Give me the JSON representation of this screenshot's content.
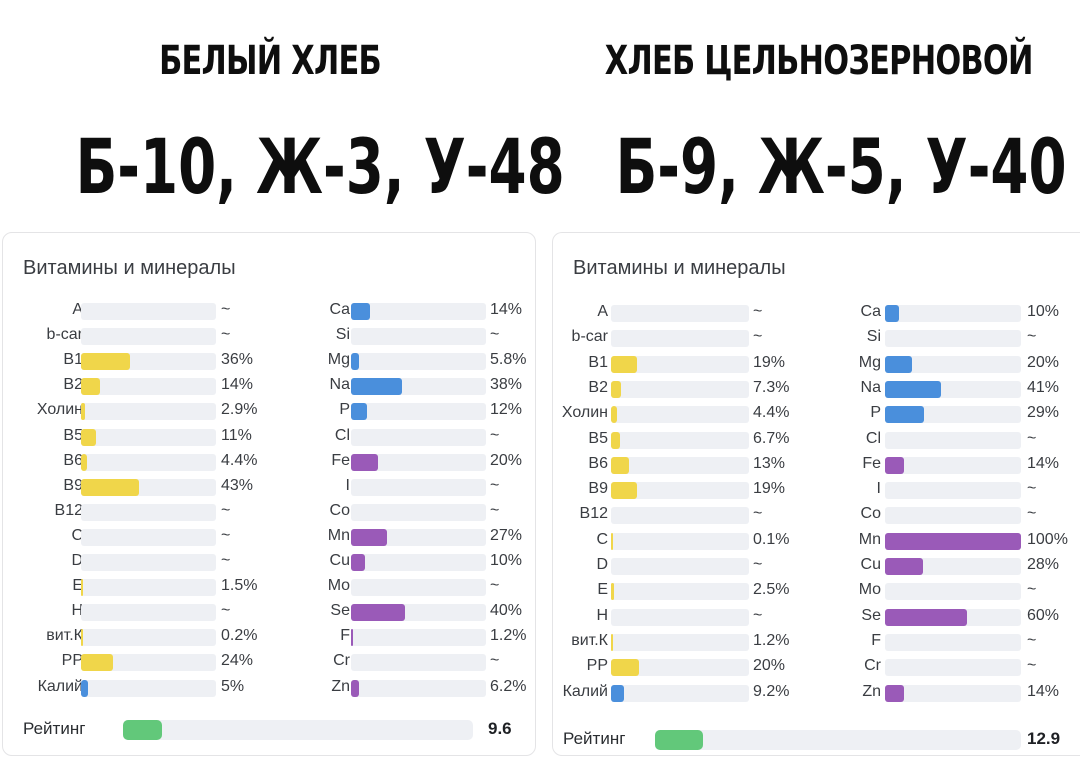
{
  "colors": {
    "yellow": "#f0d64a",
    "blue": "#4a8fdc",
    "purple": "#9a5ab8",
    "green": "#62c87a"
  },
  "panels": [
    {
      "title": "БЕЛЫЙ ХЛЕБ",
      "macros": "Б-10, Ж-3, У-48",
      "card_title": "Витамины и минералы",
      "rating_label": "Рейтинг",
      "rating_value": "9.6",
      "rating_fraction": 0.11,
      "left": [
        {
          "label": "A",
          "value": "~",
          "pct": 0,
          "color": "yellow"
        },
        {
          "label": "b-car",
          "value": "~",
          "pct": 0,
          "color": "yellow"
        },
        {
          "label": "B1",
          "value": "36%",
          "pct": 36,
          "color": "yellow"
        },
        {
          "label": "B2",
          "value": "14%",
          "pct": 14,
          "color": "yellow"
        },
        {
          "label": "Холин",
          "value": "2.9%",
          "pct": 2.9,
          "color": "yellow"
        },
        {
          "label": "B5",
          "value": "11%",
          "pct": 11,
          "color": "yellow"
        },
        {
          "label": "B6",
          "value": "4.4%",
          "pct": 4.4,
          "color": "yellow"
        },
        {
          "label": "B9",
          "value": "43%",
          "pct": 43,
          "color": "yellow"
        },
        {
          "label": "B12",
          "value": "~",
          "pct": 0,
          "color": "yellow"
        },
        {
          "label": "C",
          "value": "~",
          "pct": 0,
          "color": "yellow"
        },
        {
          "label": "D",
          "value": "~",
          "pct": 0,
          "color": "yellow"
        },
        {
          "label": "E",
          "value": "1.5%",
          "pct": 1.5,
          "color": "yellow"
        },
        {
          "label": "H",
          "value": "~",
          "pct": 0,
          "color": "yellow"
        },
        {
          "label": "вит.К",
          "value": "0.2%",
          "pct": 0.2,
          "color": "yellow"
        },
        {
          "label": "PP",
          "value": "24%",
          "pct": 24,
          "color": "yellow"
        },
        {
          "label": "Калий",
          "value": "5%",
          "pct": 5,
          "color": "blue"
        }
      ],
      "right": [
        {
          "label": "Ca",
          "value": "14%",
          "pct": 14,
          "color": "blue"
        },
        {
          "label": "Si",
          "value": "~",
          "pct": 0,
          "color": "blue"
        },
        {
          "label": "Mg",
          "value": "5.8%",
          "pct": 5.8,
          "color": "blue"
        },
        {
          "label": "Na",
          "value": "38%",
          "pct": 38,
          "color": "blue"
        },
        {
          "label": "P",
          "value": "12%",
          "pct": 12,
          "color": "blue"
        },
        {
          "label": "Cl",
          "value": "~",
          "pct": 0,
          "color": "blue"
        },
        {
          "label": "Fe",
          "value": "20%",
          "pct": 20,
          "color": "purple"
        },
        {
          "label": "I",
          "value": "~",
          "pct": 0,
          "color": "purple"
        },
        {
          "label": "Co",
          "value": "~",
          "pct": 0,
          "color": "purple"
        },
        {
          "label": "Mn",
          "value": "27%",
          "pct": 27,
          "color": "purple"
        },
        {
          "label": "Cu",
          "value": "10%",
          "pct": 10,
          "color": "purple"
        },
        {
          "label": "Mo",
          "value": "~",
          "pct": 0,
          "color": "purple"
        },
        {
          "label": "Se",
          "value": "40%",
          "pct": 40,
          "color": "purple"
        },
        {
          "label": "F",
          "value": "1.2%",
          "pct": 1.2,
          "color": "purple"
        },
        {
          "label": "Cr",
          "value": "~",
          "pct": 0,
          "color": "purple"
        },
        {
          "label": "Zn",
          "value": "6.2%",
          "pct": 6.2,
          "color": "purple"
        }
      ]
    },
    {
      "title": "ХЛЕБ ЦЕЛЬНОЗЕРНОВОЙ",
      "macros": "Б-9, Ж-5, У-40",
      "card_title": "Витамины и минералы",
      "rating_label": "Рейтинг",
      "rating_value": "12.9",
      "rating_fraction": 0.13,
      "left": [
        {
          "label": "A",
          "value": "~",
          "pct": 0,
          "color": "yellow"
        },
        {
          "label": "b-car",
          "value": "~",
          "pct": 0,
          "color": "yellow"
        },
        {
          "label": "B1",
          "value": "19%",
          "pct": 19,
          "color": "yellow"
        },
        {
          "label": "B2",
          "value": "7.3%",
          "pct": 7.3,
          "color": "yellow"
        },
        {
          "label": "Холин",
          "value": "4.4%",
          "pct": 4.4,
          "color": "yellow"
        },
        {
          "label": "B5",
          "value": "6.7%",
          "pct": 6.7,
          "color": "yellow"
        },
        {
          "label": "B6",
          "value": "13%",
          "pct": 13,
          "color": "yellow"
        },
        {
          "label": "B9",
          "value": "19%",
          "pct": 19,
          "color": "yellow"
        },
        {
          "label": "B12",
          "value": "~",
          "pct": 0,
          "color": "yellow"
        },
        {
          "label": "C",
          "value": "0.1%",
          "pct": 0.1,
          "color": "yellow"
        },
        {
          "label": "D",
          "value": "~",
          "pct": 0,
          "color": "yellow"
        },
        {
          "label": "E",
          "value": "2.5%",
          "pct": 2.5,
          "color": "yellow"
        },
        {
          "label": "H",
          "value": "~",
          "pct": 0,
          "color": "yellow"
        },
        {
          "label": "вит.К",
          "value": "1.2%",
          "pct": 1.2,
          "color": "yellow"
        },
        {
          "label": "PP",
          "value": "20%",
          "pct": 20,
          "color": "yellow"
        },
        {
          "label": "Калий",
          "value": "9.2%",
          "pct": 9.2,
          "color": "blue"
        }
      ],
      "right": [
        {
          "label": "Ca",
          "value": "10%",
          "pct": 10,
          "color": "blue"
        },
        {
          "label": "Si",
          "value": "~",
          "pct": 0,
          "color": "blue"
        },
        {
          "label": "Mg",
          "value": "20%",
          "pct": 20,
          "color": "blue"
        },
        {
          "label": "Na",
          "value": "41%",
          "pct": 41,
          "color": "blue"
        },
        {
          "label": "P",
          "value": "29%",
          "pct": 29,
          "color": "blue"
        },
        {
          "label": "Cl",
          "value": "~",
          "pct": 0,
          "color": "blue"
        },
        {
          "label": "Fe",
          "value": "14%",
          "pct": 14,
          "color": "purple"
        },
        {
          "label": "I",
          "value": "~",
          "pct": 0,
          "color": "purple"
        },
        {
          "label": "Co",
          "value": "~",
          "pct": 0,
          "color": "purple"
        },
        {
          "label": "Mn",
          "value": "100%",
          "pct": 100,
          "color": "purple"
        },
        {
          "label": "Cu",
          "value": "28%",
          "pct": 28,
          "color": "purple"
        },
        {
          "label": "Mo",
          "value": "~",
          "pct": 0,
          "color": "purple"
        },
        {
          "label": "Se",
          "value": "60%",
          "pct": 60,
          "color": "purple"
        },
        {
          "label": "F",
          "value": "~",
          "pct": 0,
          "color": "purple"
        },
        {
          "label": "Cr",
          "value": "~",
          "pct": 0,
          "color": "purple"
        },
        {
          "label": "Zn",
          "value": "14%",
          "pct": 14,
          "color": "purple"
        }
      ]
    }
  ],
  "chart_data": [
    {
      "type": "bar",
      "title": "Витамины и минералы",
      "categories": [
        "A",
        "b-car",
        "B1",
        "B2",
        "Холин",
        "B5",
        "B6",
        "B9",
        "B12",
        "C",
        "D",
        "E",
        "H",
        "вит.К",
        "PP",
        "Калий",
        "Ca",
        "Si",
        "Mg",
        "Na",
        "P",
        "Cl",
        "Fe",
        "I",
        "Co",
        "Mn",
        "Cu",
        "Mo",
        "Se",
        "F",
        "Cr",
        "Zn"
      ],
      "values": [
        null,
        null,
        36,
        14,
        2.9,
        11,
        4.4,
        43,
        null,
        null,
        null,
        1.5,
        null,
        0.2,
        24,
        5,
        14,
        null,
        5.8,
        38,
        12,
        null,
        20,
        null,
        null,
        27,
        10,
        null,
        40,
        1.2,
        null,
        6.2
      ],
      "rating": 9.6,
      "ylim": [
        0,
        100
      ]
    },
    {
      "type": "bar",
      "title": "Витамины и минералы",
      "categories": [
        "A",
        "b-car",
        "B1",
        "B2",
        "Холин",
        "B5",
        "B6",
        "B9",
        "B12",
        "C",
        "D",
        "E",
        "H",
        "вит.К",
        "PP",
        "Калий",
        "Ca",
        "Si",
        "Mg",
        "Na",
        "P",
        "Cl",
        "Fe",
        "I",
        "Co",
        "Mn",
        "Cu",
        "Mo",
        "Se",
        "F",
        "Cr",
        "Zn"
      ],
      "values": [
        null,
        null,
        19,
        7.3,
        4.4,
        6.7,
        13,
        19,
        null,
        0.1,
        null,
        2.5,
        null,
        1.2,
        20,
        9.2,
        10,
        null,
        20,
        41,
        29,
        null,
        14,
        null,
        null,
        100,
        28,
        null,
        60,
        null,
        null,
        14
      ],
      "rating": 12.9,
      "ylim": [
        0,
        100
      ]
    }
  ]
}
